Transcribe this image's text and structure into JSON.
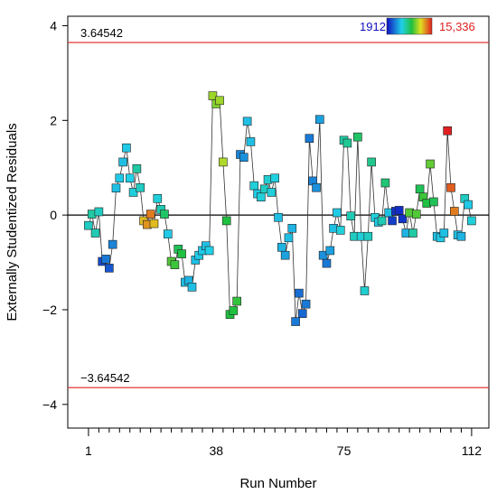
{
  "chart_data": {
    "type": "scatter",
    "xlabel": "Run Number",
    "ylabel": "Externally Studentized Residuals",
    "xlim": [
      -5,
      117
    ],
    "ylim": [
      -4.5,
      4.2
    ],
    "x_ticks": [
      1,
      38,
      75,
      112
    ],
    "y_ticks": [
      -4,
      -2,
      0,
      2,
      4
    ],
    "y_tick_labels": [
      "−4",
      "−2",
      "0",
      "2",
      "4"
    ],
    "upper_limit": {
      "value": 3.64542,
      "label": "3.64542",
      "color": "#e02020"
    },
    "lower_limit": {
      "value": -3.64542,
      "label": "−3.64542",
      "color": "#e02020"
    },
    "zero_line": 0,
    "color_legend": {
      "min_label": "1912",
      "max_label": "15,336",
      "min_color": "#1010c0",
      "max_color": "#e02020"
    },
    "series": [
      {
        "points": [
          {
            "x": 1,
            "y": -0.22,
            "c": 0.38
          },
          {
            "x": 2,
            "y": 0.02,
            "c": 0.42
          },
          {
            "x": 3,
            "y": -0.38,
            "c": 0.4
          },
          {
            "x": 4,
            "y": 0.07,
            "c": 0.38
          },
          {
            "x": 5,
            "y": -0.98,
            "c": 0.1
          },
          {
            "x": 6,
            "y": -0.93,
            "c": 0.18
          },
          {
            "x": 7,
            "y": -1.12,
            "c": 0.12
          },
          {
            "x": 8,
            "y": -0.62,
            "c": 0.2
          },
          {
            "x": 9,
            "y": 0.57,
            "c": 0.3
          },
          {
            "x": 10,
            "y": 0.78,
            "c": 0.32
          },
          {
            "x": 11,
            "y": 1.12,
            "c": 0.3
          },
          {
            "x": 12,
            "y": 1.42,
            "c": 0.32
          },
          {
            "x": 13,
            "y": 0.78,
            "c": 0.33
          },
          {
            "x": 14,
            "y": 0.48,
            "c": 0.35
          },
          {
            "x": 15,
            "y": 0.98,
            "c": 0.42
          },
          {
            "x": 16,
            "y": 0.58,
            "c": 0.38
          },
          {
            "x": 17,
            "y": -0.12,
            "c": 0.8
          },
          {
            "x": 18,
            "y": -0.2,
            "c": 0.85
          },
          {
            "x": 19,
            "y": 0.02,
            "c": 0.88
          },
          {
            "x": 20,
            "y": -0.18,
            "c": 0.8
          },
          {
            "x": 21,
            "y": 0.35,
            "c": 0.35
          },
          {
            "x": 22,
            "y": 0.12,
            "c": 0.4
          },
          {
            "x": 23,
            "y": 0.02,
            "c": 0.5
          },
          {
            "x": 24,
            "y": -0.4,
            "c": 0.32
          },
          {
            "x": 25,
            "y": -0.98,
            "c": 0.6
          },
          {
            "x": 26,
            "y": -1.05,
            "c": 0.58
          },
          {
            "x": 27,
            "y": -0.72,
            "c": 0.52
          },
          {
            "x": 28,
            "y": -0.82,
            "c": 0.55
          },
          {
            "x": 29,
            "y": -1.42,
            "c": 0.3
          },
          {
            "x": 30,
            "y": -1.38,
            "c": 0.28
          },
          {
            "x": 31,
            "y": -1.52,
            "c": 0.3
          },
          {
            "x": 32,
            "y": -0.95,
            "c": 0.3
          },
          {
            "x": 33,
            "y": -0.85,
            "c": 0.32
          },
          {
            "x": 34,
            "y": -0.75,
            "c": 0.32
          },
          {
            "x": 35,
            "y": -0.65,
            "c": 0.3
          },
          {
            "x": 36,
            "y": -0.75,
            "c": 0.33
          },
          {
            "x": 37,
            "y": 2.52,
            "c": 0.68
          },
          {
            "x": 38,
            "y": 2.35,
            "c": 0.65
          },
          {
            "x": 39,
            "y": 2.42,
            "c": 0.68
          },
          {
            "x": 40,
            "y": 1.12,
            "c": 0.7
          },
          {
            "x": 41,
            "y": -0.12,
            "c": 0.55
          },
          {
            "x": 42,
            "y": -2.1,
            "c": 0.55
          },
          {
            "x": 43,
            "y": -2.02,
            "c": 0.55
          },
          {
            "x": 44,
            "y": -1.82,
            "c": 0.57
          },
          {
            "x": 45,
            "y": 1.28,
            "c": 0.2
          },
          {
            "x": 46,
            "y": 1.22,
            "c": 0.22
          },
          {
            "x": 47,
            "y": 1.98,
            "c": 0.3
          },
          {
            "x": 48,
            "y": 1.55,
            "c": 0.3
          },
          {
            "x": 49,
            "y": 0.62,
            "c": 0.35
          },
          {
            "x": 50,
            "y": 0.45,
            "c": 0.32
          },
          {
            "x": 51,
            "y": 0.38,
            "c": 0.35
          },
          {
            "x": 52,
            "y": 0.55,
            "c": 0.38
          },
          {
            "x": 53,
            "y": 0.75,
            "c": 0.36
          },
          {
            "x": 54,
            "y": 0.48,
            "c": 0.35
          },
          {
            "x": 55,
            "y": 0.78,
            "c": 0.34
          },
          {
            "x": 56,
            "y": -0.05,
            "c": 0.3
          },
          {
            "x": 57,
            "y": -0.68,
            "c": 0.28
          },
          {
            "x": 58,
            "y": -0.85,
            "c": 0.25
          },
          {
            "x": 59,
            "y": -0.48,
            "c": 0.3
          },
          {
            "x": 60,
            "y": -0.28,
            "c": 0.28
          },
          {
            "x": 61,
            "y": -2.25,
            "c": 0.18
          },
          {
            "x": 62,
            "y": -1.65,
            "c": 0.16
          },
          {
            "x": 63,
            "y": -2.08,
            "c": 0.15
          },
          {
            "x": 64,
            "y": -1.88,
            "c": 0.18
          },
          {
            "x": 65,
            "y": 1.62,
            "c": 0.18
          },
          {
            "x": 66,
            "y": 0.72,
            "c": 0.2
          },
          {
            "x": 67,
            "y": 0.58,
            "c": 0.22
          },
          {
            "x": 68,
            "y": 2.02,
            "c": 0.25
          },
          {
            "x": 69,
            "y": -0.85,
            "c": 0.22
          },
          {
            "x": 70,
            "y": -1.02,
            "c": 0.18
          },
          {
            "x": 71,
            "y": -0.75,
            "c": 0.25
          },
          {
            "x": 72,
            "y": -0.28,
            "c": 0.3
          },
          {
            "x": 73,
            "y": 0.05,
            "c": 0.32
          },
          {
            "x": 74,
            "y": -0.32,
            "c": 0.35
          },
          {
            "x": 75,
            "y": 1.58,
            "c": 0.42
          },
          {
            "x": 76,
            "y": 1.52,
            "c": 0.44
          },
          {
            "x": 77,
            "y": -0.02,
            "c": 0.4
          },
          {
            "x": 78,
            "y": -0.45,
            "c": 0.38
          },
          {
            "x": 79,
            "y": 1.65,
            "c": 0.5
          },
          {
            "x": 80,
            "y": -0.45,
            "c": 0.35
          },
          {
            "x": 81,
            "y": -1.6,
            "c": 0.36
          },
          {
            "x": 82,
            "y": -0.45,
            "c": 0.38
          },
          {
            "x": 83,
            "y": 1.12,
            "c": 0.45
          },
          {
            "x": 84,
            "y": -0.05,
            "c": 0.35
          },
          {
            "x": 85,
            "y": -0.15,
            "c": 0.32
          },
          {
            "x": 86,
            "y": -0.12,
            "c": 0.4
          },
          {
            "x": 87,
            "y": 0.68,
            "c": 0.48
          },
          {
            "x": 88,
            "y": 0.05,
            "c": 0.3
          },
          {
            "x": 89,
            "y": -0.12,
            "c": 0.08
          },
          {
            "x": 90,
            "y": 0.08,
            "c": 0.06
          },
          {
            "x": 91,
            "y": 0.1,
            "c": 0.05
          },
          {
            "x": 92,
            "y": -0.08,
            "c": 0.06
          },
          {
            "x": 93,
            "y": -0.38,
            "c": 0.28
          },
          {
            "x": 94,
            "y": 0.05,
            "c": 0.6
          },
          {
            "x": 95,
            "y": -0.38,
            "c": 0.42
          },
          {
            "x": 96,
            "y": 0.02,
            "c": 0.6
          },
          {
            "x": 97,
            "y": 0.55,
            "c": 0.52
          },
          {
            "x": 98,
            "y": 0.38,
            "c": 0.58
          },
          {
            "x": 99,
            "y": 0.25,
            "c": 0.55
          },
          {
            "x": 100,
            "y": 1.08,
            "c": 0.62
          },
          {
            "x": 101,
            "y": 0.28,
            "c": 0.52
          },
          {
            "x": 102,
            "y": -0.45,
            "c": 0.3
          },
          {
            "x": 103,
            "y": -0.48,
            "c": 0.32
          },
          {
            "x": 104,
            "y": -0.38,
            "c": 0.3
          },
          {
            "x": 105,
            "y": 1.78,
            "c": 1.0
          },
          {
            "x": 106,
            "y": 0.58,
            "c": 0.92
          },
          {
            "x": 107,
            "y": 0.08,
            "c": 0.88
          },
          {
            "x": 108,
            "y": -0.42,
            "c": 0.3
          },
          {
            "x": 109,
            "y": -0.45,
            "c": 0.28
          },
          {
            "x": 110,
            "y": 0.35,
            "c": 0.38
          },
          {
            "x": 111,
            "y": 0.22,
            "c": 0.32
          },
          {
            "x": 112,
            "y": -0.12,
            "c": 0.35
          }
        ]
      }
    ]
  }
}
